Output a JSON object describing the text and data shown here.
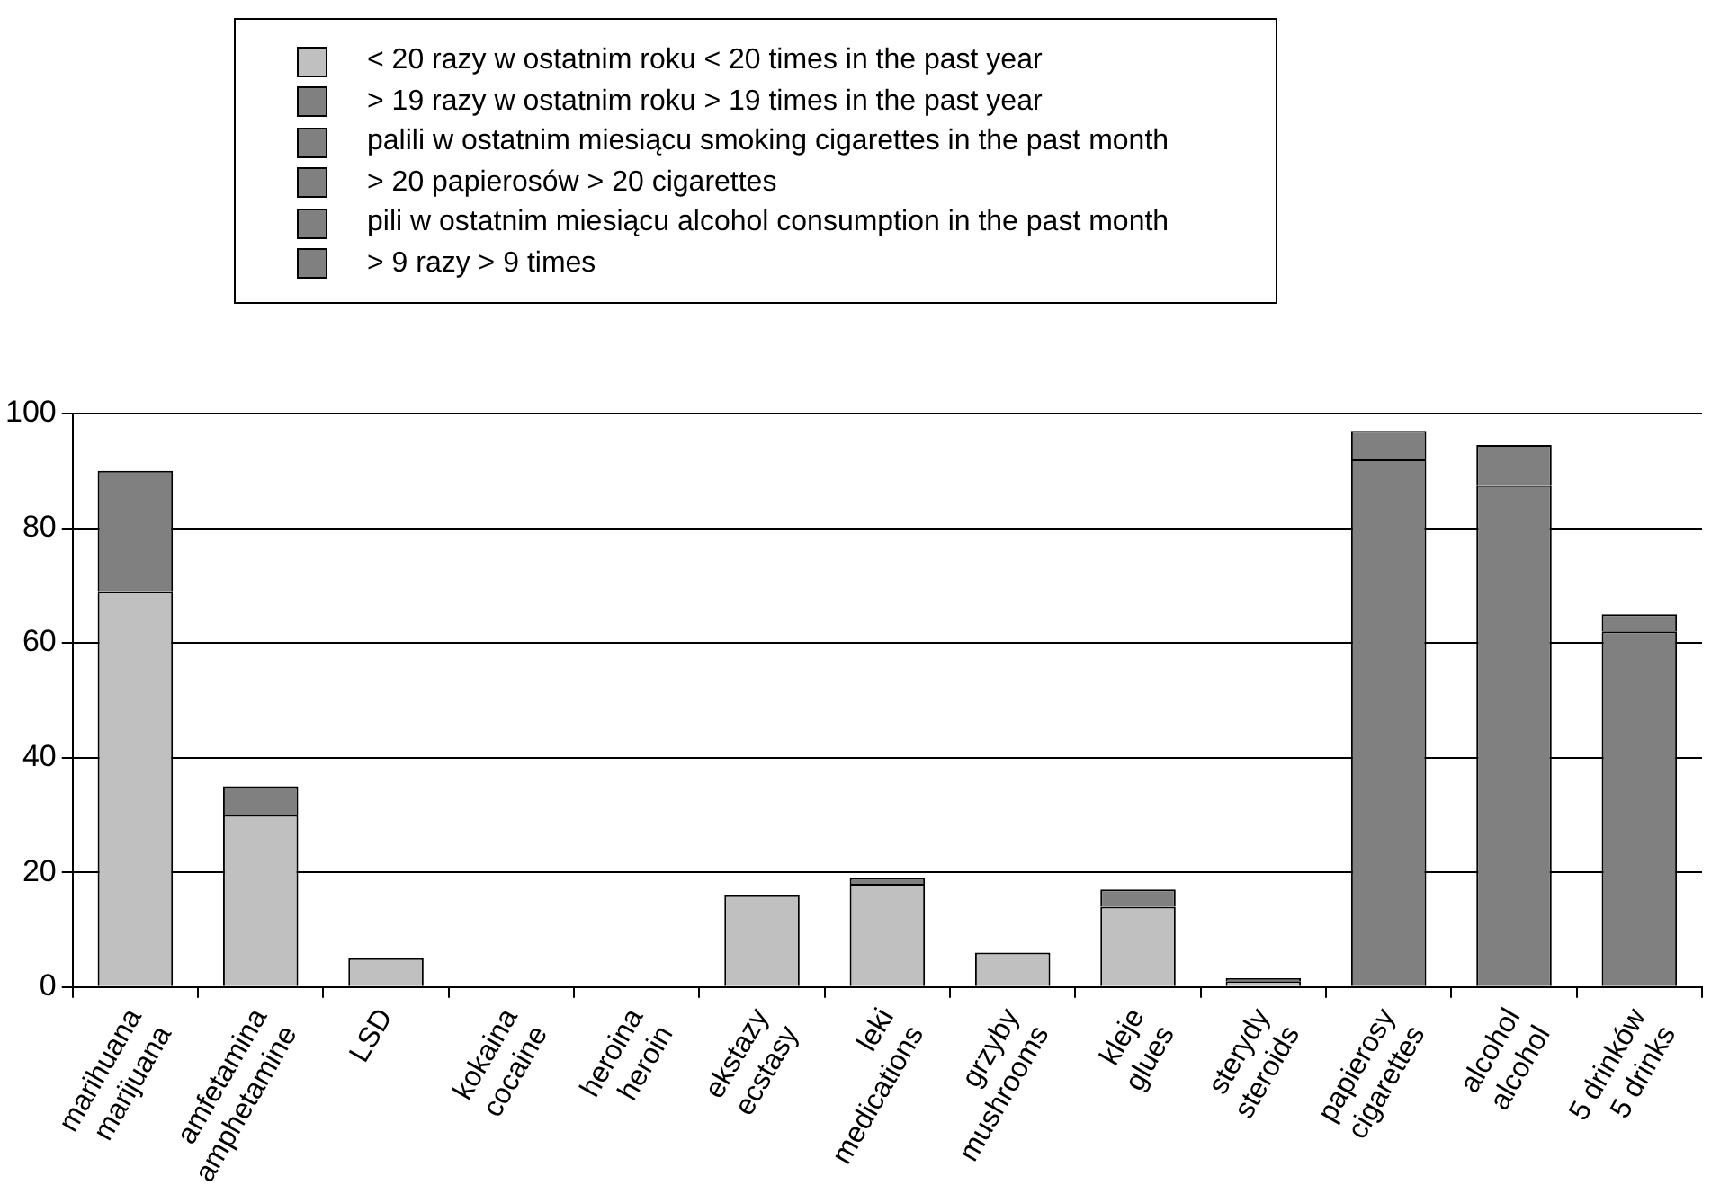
{
  "chart_data": {
    "type": "bar",
    "stacked": true,
    "categories": [
      "marihuana\nmarijuana",
      "amfetamina\namphetamine",
      "LSD",
      "kokaina\ncocaine",
      "heroina\nheroin",
      "ekstazy\necstasy",
      "leki\nmedications",
      "grzyby\nmushrooms",
      "kleje\nglues",
      "sterydy\nsteroids",
      "papierosy\ncigarettes",
      "alcohol\nalcohol",
      "5 drinków\n5 drinks"
    ],
    "series": [
      {
        "name": "< 20 razy w ostatnim roku < 20 times in the past year",
        "color": "#c0c0c0",
        "values": [
          69,
          30,
          5,
          0,
          0,
          16,
          18,
          6,
          14,
          1,
          null,
          null,
          null
        ]
      },
      {
        "name": "> 19 razy w ostatnim roku  > 19 times in the past year",
        "color": "#808080",
        "values": [
          21,
          5,
          null,
          null,
          null,
          null,
          1,
          null,
          3,
          0.5,
          null,
          null,
          null
        ]
      },
      {
        "name": "palili w ostatnim miesiącu  smoking cigarettes in the past month",
        "color": "#808080",
        "values": [
          null,
          null,
          null,
          null,
          null,
          null,
          null,
          null,
          null,
          null,
          92,
          null,
          null
        ]
      },
      {
        "name": "> 20 papierosów  > 20 cigarettes",
        "color": "#808080",
        "values": [
          null,
          null,
          null,
          null,
          null,
          null,
          null,
          null,
          null,
          null,
          5,
          null,
          null
        ]
      },
      {
        "name": "pili w ostatnim miesiącu  alcohol consumption in the past month",
        "color": "#808080",
        "values": [
          null,
          null,
          null,
          null,
          null,
          null,
          null,
          null,
          null,
          null,
          null,
          87.5,
          62
        ]
      },
      {
        "name": "> 9 razy  > 9 times",
        "color": "#808080",
        "values": [
          null,
          null,
          null,
          null,
          null,
          null,
          null,
          null,
          null,
          null,
          null,
          7,
          3
        ]
      }
    ],
    "ylim": [
      0,
      100
    ],
    "yticks": [
      0,
      20,
      40,
      60,
      80,
      100
    ],
    "grid": "y",
    "legend": "top"
  }
}
